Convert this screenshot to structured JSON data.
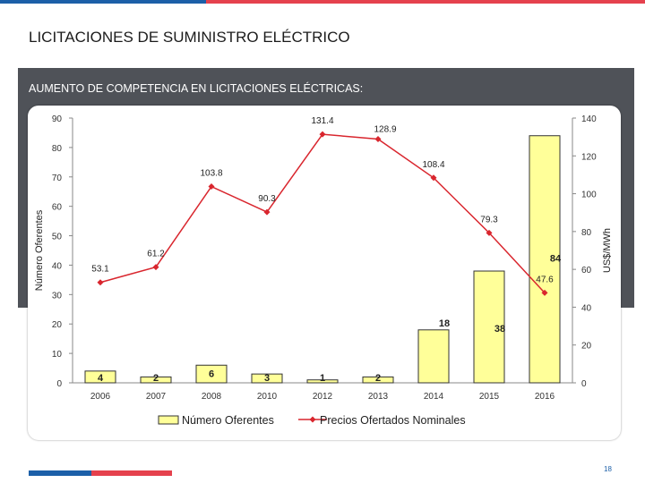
{
  "slide": {
    "title": "LICITACIONES DE SUMINISTRO ELÉCTRICO",
    "panel_title": "AUMENTO DE COMPETENCIA EN LICITACIONES ELÉCTRICAS:",
    "page_number": "18"
  },
  "colors": {
    "bar_fill": "#ffff99",
    "bar_stroke": "#333333",
    "line": "#d9262e",
    "panel": "#4f5258",
    "accent_blue": "#1c5fa8",
    "accent_red": "#e5414d"
  },
  "chart_data": {
    "type": "bar",
    "categories": [
      "2006",
      "2007",
      "2008",
      "2010",
      "2012",
      "2013",
      "2014",
      "2015",
      "2016"
    ],
    "series": [
      {
        "name": "Número Oferentes",
        "type": "bar",
        "axis": "left",
        "values": [
          4,
          2,
          6,
          3,
          1,
          2,
          18,
          38,
          84
        ],
        "labels": [
          "4",
          "2",
          "6",
          "3",
          "1",
          "2",
          "18",
          "38",
          "84"
        ]
      },
      {
        "name": "Precios Ofertados Nominales",
        "type": "line",
        "axis": "right",
        "values": [
          53.1,
          61.2,
          103.8,
          90.3,
          131.4,
          128.9,
          108.4,
          79.3,
          47.6
        ],
        "labels": [
          "53.1",
          "61.2",
          "103.8",
          "90.3",
          "131.4",
          "128.9",
          "108.4",
          "79.3",
          "47.6"
        ]
      }
    ],
    "ylabel": "Número Oferentes",
    "ylabel_right": "US$/MWh",
    "ylim": [
      0,
      90
    ],
    "yticks": [
      0,
      10,
      20,
      30,
      40,
      50,
      60,
      70,
      80,
      90
    ],
    "ylim_right": [
      0,
      140
    ],
    "yticks_right": [
      0,
      20,
      40,
      60,
      80,
      100,
      120,
      140
    ],
    "legend_position": "bottom",
    "grid": false
  }
}
